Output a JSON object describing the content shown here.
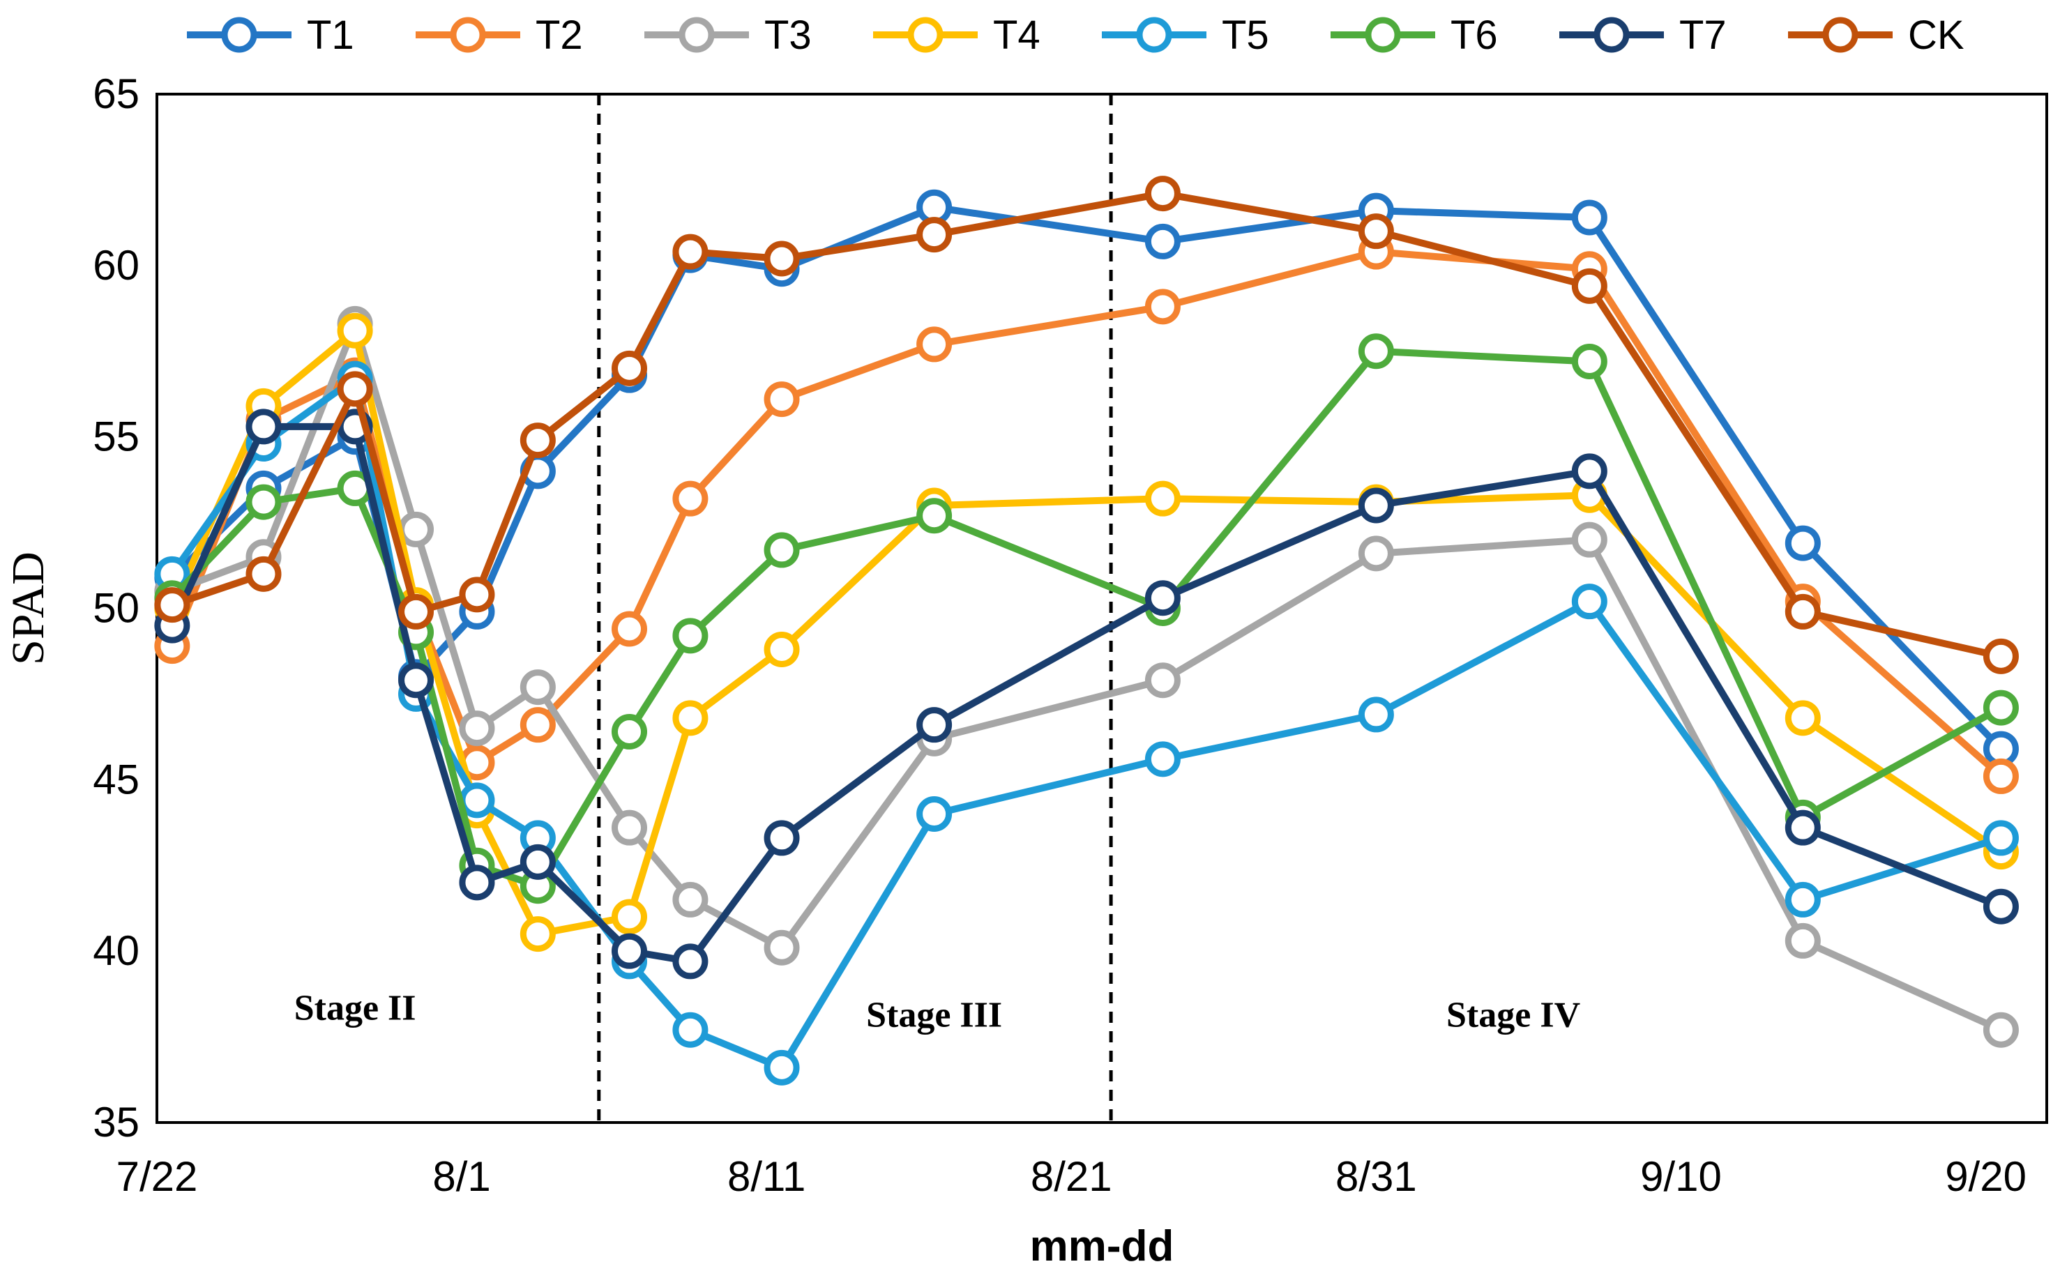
{
  "chart_data": {
    "type": "line",
    "title": "",
    "xlabel": "mm-dd",
    "ylabel": "SPAD",
    "ylim": [
      35,
      65
    ],
    "yticks": [
      35,
      40,
      45,
      50,
      55,
      60,
      65
    ],
    "xlim": [
      0,
      62
    ],
    "xticks": [
      {
        "pos": 0,
        "label": "7/22"
      },
      {
        "pos": 10,
        "label": "8/1"
      },
      {
        "pos": 20,
        "label": "8/11"
      },
      {
        "pos": 30,
        "label": "8/21"
      },
      {
        "pos": 40,
        "label": "8/31"
      },
      {
        "pos": 50,
        "label": "9/10"
      },
      {
        "pos": 60,
        "label": "9/20"
      }
    ],
    "x": [
      0.5,
      3.5,
      6.5,
      8.5,
      10.5,
      12.5,
      15.5,
      17.5,
      20.5,
      25.5,
      33,
      40,
      47,
      54,
      60.5
    ],
    "series": [
      {
        "name": "T1",
        "color": "#2376C5",
        "values": [
          50.9,
          53.5,
          55.0,
          48.0,
          49.9,
          54.0,
          56.8,
          60.3,
          59.9,
          61.7,
          60.7,
          61.6,
          61.4,
          51.9,
          45.9
        ]
      },
      {
        "name": "T2",
        "color": "#F4822F",
        "values": [
          48.9,
          55.5,
          56.8,
          50.0,
          45.5,
          46.6,
          49.4,
          53.2,
          56.1,
          57.7,
          58.8,
          60.4,
          59.9,
          50.2,
          45.1
        ]
      },
      {
        "name": "T3",
        "color": "#A6A6A6",
        "values": [
          50.5,
          51.5,
          58.3,
          52.3,
          46.5,
          47.7,
          43.6,
          41.5,
          40.1,
          46.2,
          47.9,
          51.6,
          52.0,
          40.3,
          37.7
        ]
      },
      {
        "name": "T4",
        "color": "#FFBF00",
        "values": [
          50.0,
          55.9,
          58.1,
          50.1,
          44.1,
          40.5,
          41.0,
          46.8,
          48.8,
          53.0,
          53.2,
          53.1,
          53.3,
          46.8,
          42.9
        ]
      },
      {
        "name": "T5",
        "color": "#1E9BD7",
        "values": [
          51.0,
          54.8,
          56.7,
          47.5,
          44.4,
          43.3,
          39.7,
          37.7,
          36.6,
          44.0,
          45.6,
          46.9,
          50.2,
          41.5,
          43.3
        ]
      },
      {
        "name": "T6",
        "color": "#4EAB3C",
        "values": [
          50.3,
          53.1,
          53.5,
          49.3,
          42.5,
          41.9,
          46.4,
          49.2,
          51.7,
          52.7,
          50.0,
          57.5,
          57.2,
          43.9,
          47.1
        ]
      },
      {
        "name": "T7",
        "color": "#1A3E6E",
        "values": [
          49.5,
          55.3,
          55.3,
          47.9,
          42.0,
          42.6,
          40.0,
          39.7,
          43.3,
          46.6,
          50.3,
          53.0,
          54.0,
          43.6,
          41.3
        ]
      },
      {
        "name": "CK",
        "color": "#C0500A",
        "values": [
          50.1,
          51.0,
          56.4,
          49.9,
          50.4,
          54.9,
          57.0,
          60.4,
          60.2,
          60.9,
          62.1,
          61.0,
          59.4,
          49.9,
          48.6
        ]
      }
    ],
    "stage_dividers": [
      14.5,
      31.3
    ],
    "annotations": [
      {
        "text": "Stage II",
        "x": 6.5,
        "y": 38.0
      },
      {
        "text": "Stage III",
        "x": 25.5,
        "y": 37.8
      },
      {
        "text": "Stage IV",
        "x": 44.5,
        "y": 37.8
      }
    ],
    "legend_position": "top",
    "grid": false
  }
}
